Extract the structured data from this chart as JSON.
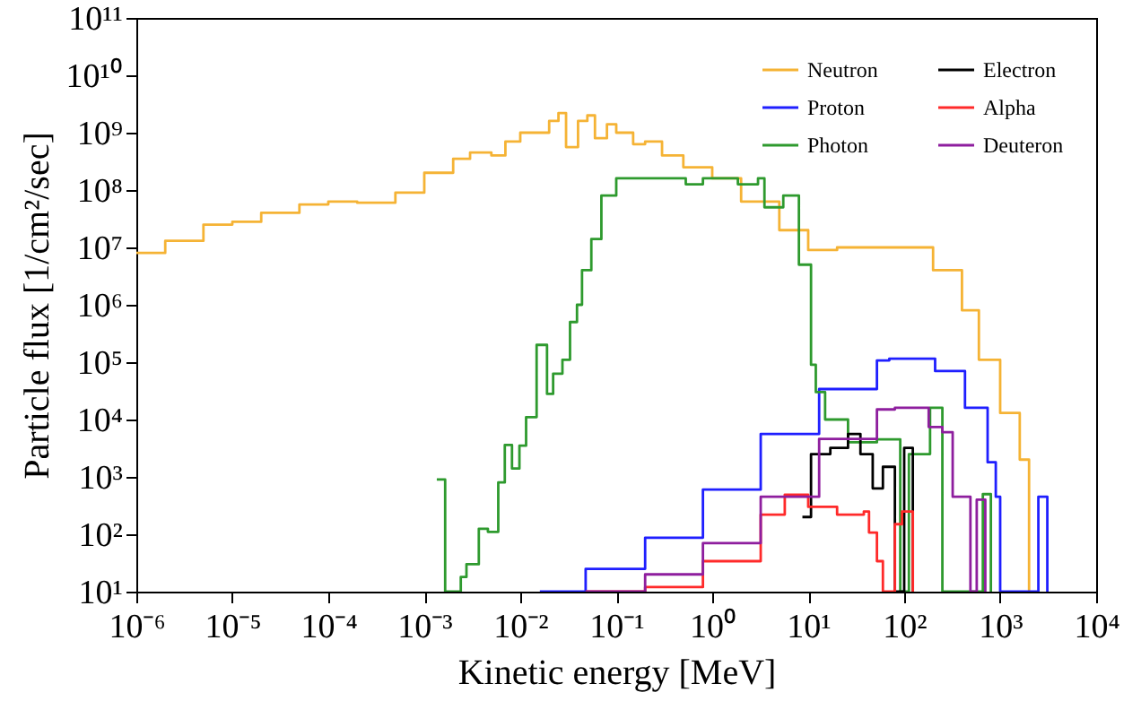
{
  "chart_data": {
    "type": "step",
    "xlabel": "Kinetic energy [MeV]",
    "ylabel": "Particle flux [1/cm²/sec]",
    "log": "xy",
    "grid": false,
    "legend": "top right",
    "xlim": [
      1e-06,
      10000.0
    ],
    "ylim": [
      10,
      100000000000.0
    ],
    "xticks": [
      {
        "value": 1e-06,
        "label": "10⁻⁶"
      },
      {
        "value": 1e-05,
        "label": "10⁻⁵"
      },
      {
        "value": 0.0001,
        "label": "10⁻⁴"
      },
      {
        "value": 0.001,
        "label": "10⁻³"
      },
      {
        "value": 0.01,
        "label": "10⁻²"
      },
      {
        "value": 0.1,
        "label": "10⁻¹"
      },
      {
        "value": 1,
        "label": "10⁰"
      },
      {
        "value": 10,
        "label": "10¹"
      },
      {
        "value": 100,
        "label": "10²"
      },
      {
        "value": 1000,
        "label": "10³"
      },
      {
        "value": 10000,
        "label": "10⁴"
      }
    ],
    "yticks": [
      {
        "value": 10,
        "label": "10¹"
      },
      {
        "value": 100,
        "label": "10²"
      },
      {
        "value": 1000,
        "label": "10³"
      },
      {
        "value": 10000.0,
        "label": "10⁴"
      },
      {
        "value": 100000.0,
        "label": "10⁵"
      },
      {
        "value": 1000000.0,
        "label": "10⁶"
      },
      {
        "value": 10000000.0,
        "label": "10⁷"
      },
      {
        "value": 100000000.0,
        "label": "10⁸"
      },
      {
        "value": 1000000000.0,
        "label": "10⁹"
      },
      {
        "value": 10000000000.0,
        "label": "10¹⁰"
      },
      {
        "value": 100000000000.0,
        "label": "10¹¹"
      }
    ],
    "series": [
      {
        "name": "Neutron",
        "color": "#f5b335",
        "x": [
          1e-06,
          2e-06,
          5e-06,
          1e-05,
          2e-05,
          5e-05,
          0.0001,
          0.0002,
          0.0005,
          0.001,
          0.002,
          0.003,
          0.005,
          0.007,
          0.01,
          0.02,
          0.025,
          0.03,
          0.04,
          0.05,
          0.06,
          0.08,
          0.1,
          0.15,
          0.2,
          0.3,
          0.5,
          1,
          2,
          5,
          10,
          20,
          50,
          100,
          200,
          400,
          600,
          1000,
          1600,
          2000
        ],
        "values": [
          8000000.0,
          13000000.0,
          25000000.0,
          28000000.0,
          40000000.0,
          56000000.0,
          63000000.0,
          60000000.0,
          90000000.0,
          200000000.0,
          350000000.0,
          450000000.0,
          400000000.0,
          700000000.0,
          1000000000.0,
          1600000000.0,
          2200000000.0,
          560000000.0,
          1600000000.0,
          2000000000.0,
          800000000.0,
          1400000000.0,
          1000000000.0,
          630000000.0,
          700000000.0,
          400000000.0,
          250000000.0,
          160000000.0,
          63000000.0,
          20000000.0,
          9000000.0,
          10000000.0,
          10000000.0,
          10000000.0,
          4000000.0,
          800000.0,
          110000.0,
          13000.0,
          2000.0,
          10
        ]
      },
      {
        "name": "Proton",
        "color": "#1f1fff",
        "x": [
          0.016,
          0.048,
          0.2,
          0.8,
          3.2,
          13,
          52,
          70,
          210,
          430,
          740,
          900,
          1000,
          2500,
          3100
        ],
        "values": [
          10,
          25,
          87,
          600,
          5600.0,
          34000.0,
          107000.0,
          115000.0,
          70000.0,
          16000.0,
          1800.0,
          450,
          10,
          450,
          10
        ]
      },
      {
        "name": "Photon",
        "color": "#2e9a2e",
        "x": [
          0.00135,
          0.00165,
          0.0024,
          0.00275,
          0.0037,
          0.0046,
          0.0059,
          0.0069,
          0.0082,
          0.0098,
          0.0115,
          0.0148,
          0.019,
          0.022,
          0.0275,
          0.033,
          0.039,
          0.044,
          0.055,
          0.07,
          0.1,
          0.23,
          0.53,
          0.8,
          1.85,
          3,
          3.5,
          5.5,
          8,
          10.7,
          12,
          15,
          26,
          52,
          91,
          112,
          186,
          250,
          660,
          800
        ],
        "values": [
          900,
          10,
          18,
          30,
          125,
          110,
          800,
          3600.0,
          1400.0,
          3500.0,
          11000.0,
          200000.0,
          28000.0,
          63000.0,
          110000.0,
          500000.0,
          1000000.0,
          4000000.0,
          14000000.0,
          80000000.0,
          160000000.0,
          160000000.0,
          126000000.0,
          160000000.0,
          126000000.0,
          160000000.0,
          50000000.0,
          80000000.0,
          5000000.0,
          90000.0,
          30000.0,
          10000.0,
          4000.0,
          4500.0,
          10,
          2500.0,
          16000.0,
          10,
          500,
          10
        ]
      },
      {
        "name": "Electron",
        "color": "#000000",
        "x": [
          8.7,
          10.7,
          17,
          26,
          35,
          47,
          60,
          80,
          100,
          123
        ],
        "values": [
          200,
          2500.0,
          3200.0,
          5600.0,
          2500.0,
          630,
          1500.0,
          10,
          3200.0,
          10
        ]
      },
      {
        "name": "Alpha",
        "color": "#ff2a2a",
        "x": [
          0.048,
          0.2,
          0.8,
          3.2,
          5.7,
          10,
          20,
          38,
          43,
          52,
          60,
          80,
          95,
          123
        ],
        "values": [
          10,
          12,
          34,
          220,
          490,
          300,
          220,
          250,
          107,
          34,
          10,
          150,
          250,
          10
        ]
      },
      {
        "name": "Deuteron",
        "color": "#8e1e9e",
        "x": [
          0.048,
          0.2,
          0.8,
          3.2,
          13,
          52,
          80,
          180,
          250,
          320,
          490,
          570,
          700
        ],
        "values": [
          10,
          20,
          70,
          450,
          4600.0,
          15000.0,
          16000.0,
          7400.0,
          6000.0,
          450,
          10,
          400,
          10
        ]
      }
    ]
  }
}
